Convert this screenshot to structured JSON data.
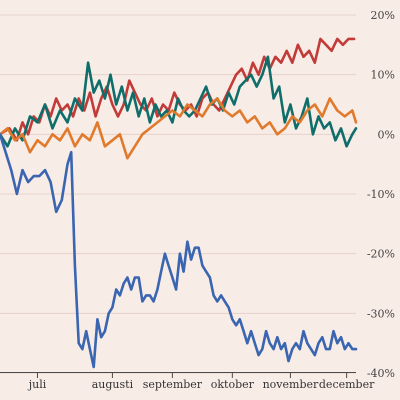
{
  "chart_data": {
    "type": "line",
    "title": "",
    "xlabel": "",
    "ylabel": "",
    "x_range": [
      0,
      190
    ],
    "ylim": [
      -40,
      20
    ],
    "y_ticks": [
      {
        "value": 20,
        "label": "20%"
      },
      {
        "value": 10,
        "label": "10%"
      },
      {
        "value": 0,
        "label": "0%"
      },
      {
        "value": -10,
        "label": "-10%"
      },
      {
        "value": -20,
        "label": "-20%"
      },
      {
        "value": -30,
        "label": "-30%"
      },
      {
        "value": -40,
        "label": "-40%"
      }
    ],
    "x_ticks": [
      {
        "value": 20,
        "label": "juli"
      },
      {
        "value": 60,
        "label": "augusti"
      },
      {
        "value": 92,
        "label": "september"
      },
      {
        "value": 124,
        "label": "oktober"
      },
      {
        "value": 155,
        "label": "november"
      },
      {
        "value": 185,
        "label": "december"
      }
    ],
    "grid": true,
    "legend": "none",
    "series": [
      {
        "color": "#c23b38",
        "x": [
          0,
          5,
          9,
          12,
          15,
          18,
          21,
          24,
          27,
          30,
          33,
          36,
          39,
          42,
          45,
          48,
          51,
          54,
          57,
          60,
          63,
          66,
          69,
          72,
          75,
          78,
          81,
          84,
          87,
          90,
          93,
          96,
          99,
          102,
          105,
          108,
          111,
          114,
          117,
          120,
          123,
          126,
          129,
          132,
          135,
          138,
          141,
          144,
          147,
          150,
          153,
          156,
          159,
          162,
          165,
          168,
          171,
          174,
          177,
          180,
          183,
          186,
          189
        ],
        "values": [
          0,
          1,
          -1,
          2,
          0,
          3,
          2,
          5,
          3,
          6,
          4,
          5,
          3,
          6,
          4,
          7,
          3,
          6,
          8,
          5,
          3,
          5,
          9,
          7,
          5,
          4,
          6,
          3,
          5,
          4,
          7,
          5,
          4,
          5,
          3,
          6,
          7,
          5,
          4,
          6,
          8,
          10,
          11,
          9,
          12,
          10,
          13,
          11,
          13,
          12,
          14,
          12,
          15,
          13,
          14,
          12,
          16,
          15,
          14,
          16,
          15,
          16,
          16
        ]
      },
      {
        "color": "#0f6e6a",
        "x": [
          0,
          4,
          8,
          12,
          16,
          20,
          24,
          28,
          32,
          36,
          40,
          44,
          47,
          50,
          53,
          56,
          59,
          62,
          65,
          68,
          71,
          74,
          77,
          80,
          83,
          86,
          89,
          92,
          95,
          98,
          101,
          104,
          107,
          110,
          113,
          116,
          119,
          122,
          125,
          128,
          131,
          134,
          137,
          140,
          143,
          146,
          149,
          152,
          155,
          158,
          161,
          164,
          167,
          170,
          173,
          176,
          179,
          182,
          185,
          188,
          190
        ],
        "values": [
          0,
          -2,
          1,
          -1,
          3,
          2,
          5,
          1,
          4,
          2,
          6,
          4,
          12,
          7,
          9,
          6,
          10,
          5,
          8,
          4,
          7,
          3,
          6,
          2,
          5,
          3,
          4,
          2,
          6,
          4,
          3,
          4,
          6,
          8,
          5,
          6,
          4,
          7,
          5,
          8,
          9,
          10,
          8,
          10,
          13,
          6,
          8,
          2,
          5,
          1,
          3,
          6,
          0,
          3,
          1,
          2,
          -1,
          1,
          -2,
          0,
          1
        ]
      },
      {
        "color": "#e07a2c",
        "x": [
          0,
          4,
          8,
          12,
          16,
          20,
          24,
          28,
          32,
          36,
          40,
          44,
          48,
          52,
          56,
          60,
          64,
          68,
          72,
          76,
          80,
          84,
          88,
          92,
          96,
          100,
          104,
          108,
          112,
          116,
          120,
          124,
          128,
          132,
          136,
          140,
          144,
          148,
          152,
          156,
          160,
          164,
          168,
          172,
          176,
          180,
          184,
          188,
          190
        ],
        "values": [
          0,
          1,
          -1,
          0,
          -3,
          -1,
          -2,
          0,
          -1,
          1,
          -2,
          0,
          -1,
          2,
          -2,
          -1,
          0,
          -4,
          -2,
          0,
          1,
          2,
          3,
          4,
          3,
          5,
          4,
          3,
          5,
          6,
          4,
          3,
          4,
          2,
          3,
          1,
          2,
          0,
          1,
          3,
          2,
          4,
          5,
          3,
          6,
          4,
          3,
          4,
          2
        ]
      },
      {
        "color": "#3a65b0",
        "x": [
          0,
          3,
          6,
          9,
          12,
          15,
          18,
          21,
          24,
          27,
          30,
          33,
          36,
          38,
          40,
          42,
          44,
          46,
          48,
          50,
          52,
          54,
          56,
          58,
          60,
          62,
          64,
          66,
          68,
          70,
          72,
          74,
          76,
          78,
          80,
          82,
          84,
          86,
          88,
          90,
          92,
          94,
          96,
          98,
          100,
          102,
          104,
          106,
          108,
          110,
          112,
          114,
          116,
          118,
          120,
          122,
          124,
          126,
          128,
          130,
          132,
          134,
          136,
          138,
          140,
          142,
          144,
          146,
          148,
          150,
          152,
          154,
          156,
          158,
          160,
          162,
          164,
          166,
          168,
          170,
          172,
          174,
          176,
          178,
          180,
          182,
          184,
          186,
          188,
          190
        ],
        "values": [
          0,
          -3,
          -6,
          -10,
          -6,
          -8,
          -7,
          -7,
          -6,
          -8,
          -13,
          -11,
          -5,
          -3,
          -22,
          -35,
          -36,
          -33,
          -36,
          -39,
          -31,
          -34,
          -33,
          -30,
          -29,
          -26,
          -27,
          -25,
          -24,
          -26,
          -24,
          -24,
          -28,
          -27,
          -27,
          -28,
          -26,
          -23,
          -20,
          -22,
          -24,
          -26,
          -20,
          -23,
          -18,
          -21,
          -19,
          -19,
          -22,
          -23,
          -24,
          -27,
          -28,
          -27,
          -28,
          -29,
          -31,
          -32,
          -31,
          -33,
          -35,
          -33,
          -35,
          -37,
          -36,
          -33,
          -35,
          -36,
          -34,
          -36,
          -35,
          -38,
          -36,
          -35,
          -36,
          -33,
          -35,
          -36,
          -37,
          -35,
          -34,
          -36,
          -36,
          -33,
          -35,
          -34,
          -36,
          -35,
          -36,
          -36
        ]
      }
    ]
  }
}
